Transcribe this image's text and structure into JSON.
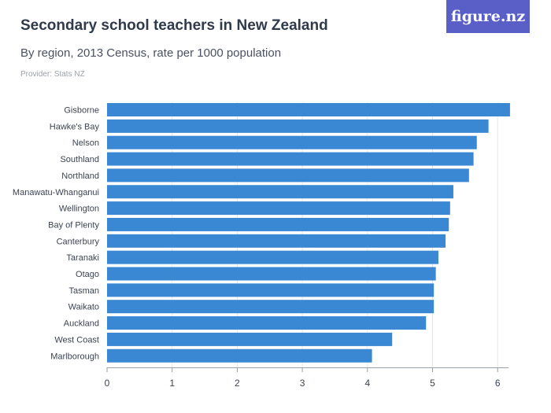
{
  "header": {
    "title": "Secondary school teachers in New Zealand",
    "subtitle": "By region, 2013 Census, rate per 1000 population",
    "provider": "Provider: Stats NZ",
    "logo_text": "figure.nz"
  },
  "colors": {
    "bar": "#3a87d4",
    "grid": "#e4e6ea",
    "axis": "#3c4350",
    "logo_bg": "#5a5fc8"
  },
  "chart_data": {
    "type": "bar",
    "orientation": "horizontal",
    "categories": [
      "Gisborne",
      "Hawke's Bay",
      "Nelson",
      "Southland",
      "Northland",
      "Manawatu-Whanganui",
      "Wellington",
      "Bay of Plenty",
      "Canterbury",
      "Taranaki",
      "Otago",
      "Tasman",
      "Waikato",
      "Auckland",
      "West Coast",
      "Marlborough"
    ],
    "values": [
      6.19,
      5.86,
      5.68,
      5.63,
      5.56,
      5.32,
      5.27,
      5.25,
      5.2,
      5.09,
      5.05,
      5.02,
      5.02,
      4.9,
      4.38,
      4.07
    ],
    "xlim": [
      0,
      6.4
    ],
    "xticks": [
      0,
      1,
      2,
      3,
      4,
      5,
      6
    ],
    "grid": true
  }
}
